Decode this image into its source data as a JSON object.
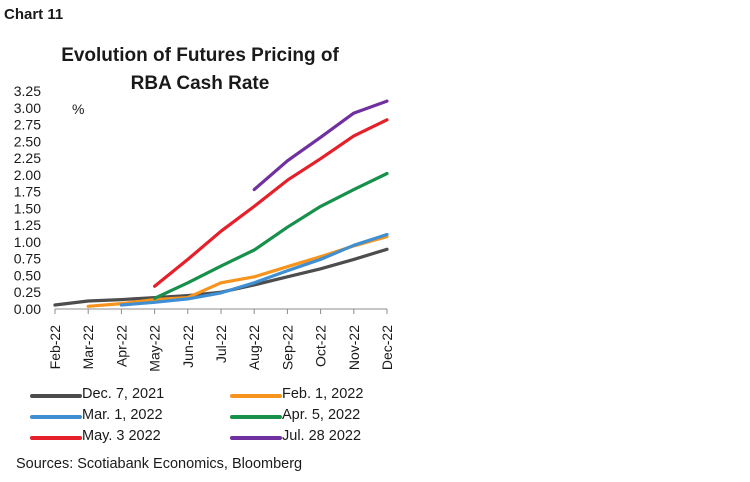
{
  "header": {
    "chart_label": "Chart 11"
  },
  "footer": {
    "source": "Sources: Scotiabank Economics, Bloomberg"
  },
  "chart_data": {
    "type": "line",
    "title_lines": [
      "Evolution of Futures Pricing of",
      "RBA Cash Rate"
    ],
    "unit_label": "%",
    "x": [
      "Feb-22",
      "Mar-22",
      "Apr-22",
      "May-22",
      "Jun-22",
      "Jul-22",
      "Aug-22",
      "Sep-22",
      "Oct-22",
      "Nov-22",
      "Dec-22"
    ],
    "ylim": [
      0,
      3.25
    ],
    "yticks": [
      "0.00",
      "0.25",
      "0.50",
      "0.75",
      "1.00",
      "1.25",
      "1.50",
      "1.75",
      "2.00",
      "2.25",
      "2.50",
      "2.75",
      "3.00",
      "3.25"
    ],
    "grid": false,
    "legend_position": "bottom",
    "series": [
      {
        "name": "Dec. 7, 2021",
        "color": "#4d4d4d",
        "values": [
          0.06,
          0.12,
          0.14,
          0.17,
          0.2,
          0.25,
          0.36,
          0.48,
          0.6,
          0.74,
          0.89
        ]
      },
      {
        "name": "Feb. 1, 2022",
        "color": "#f7941d",
        "values": [
          null,
          0.04,
          0.08,
          0.14,
          0.17,
          0.39,
          0.48,
          0.63,
          0.78,
          0.94,
          1.08
        ]
      },
      {
        "name": "Mar. 1, 2022",
        "color": "#3f8fd2",
        "values": [
          null,
          null,
          0.06,
          0.1,
          0.15,
          0.24,
          0.39,
          0.57,
          0.74,
          0.95,
          1.11
        ]
      },
      {
        "name": "Apr. 5, 2022",
        "color": "#16904a",
        "values": [
          null,
          null,
          null,
          0.16,
          0.39,
          0.64,
          0.88,
          1.22,
          1.53,
          1.78,
          2.02
        ]
      },
      {
        "name": "May. 3 2022",
        "color": "#e5202a",
        "values": [
          null,
          null,
          null,
          0.34,
          0.74,
          1.16,
          1.53,
          1.92,
          2.24,
          2.58,
          2.82
        ]
      },
      {
        "name": "Jul. 28 2022",
        "color": "#7030a0",
        "values": [
          null,
          null,
          null,
          null,
          null,
          null,
          1.78,
          2.21,
          2.56,
          2.92,
          3.1
        ]
      }
    ]
  }
}
